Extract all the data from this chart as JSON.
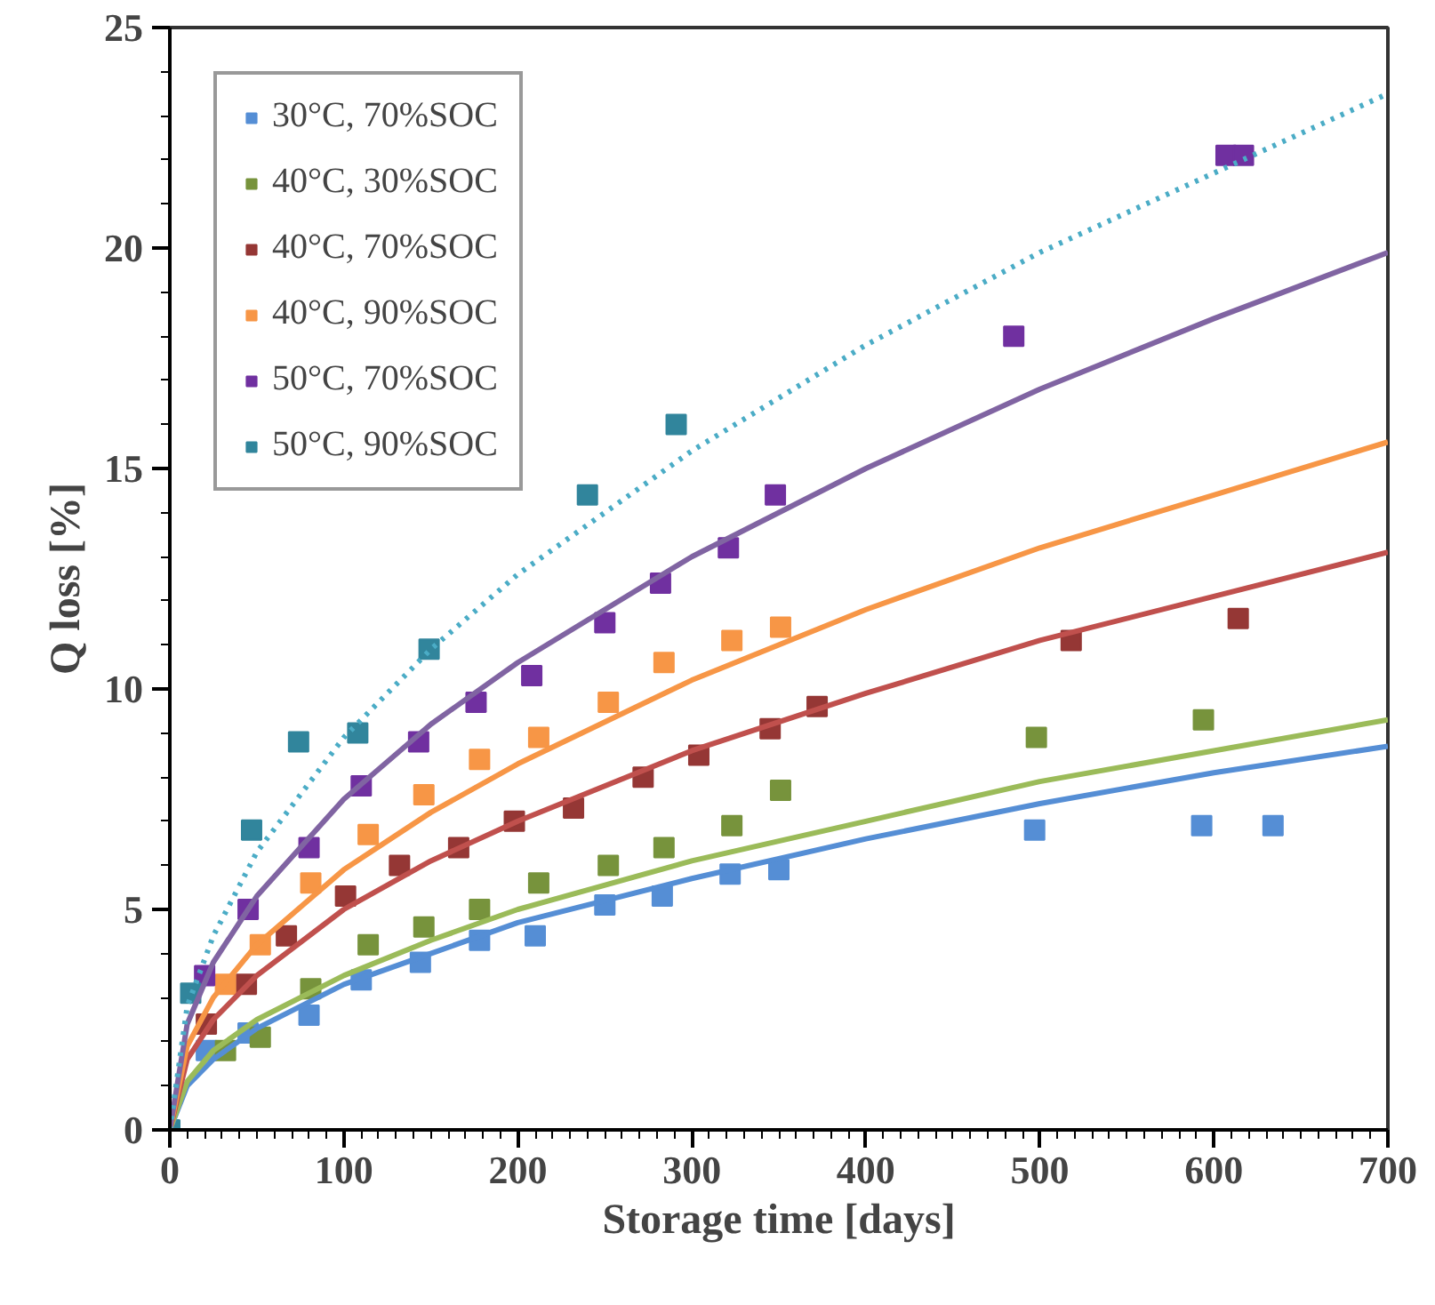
{
  "chart_data": {
    "type": "scatter",
    "xlabel": "Storage time [days]",
    "ylabel": "Q loss [%]",
    "xlim": [
      0,
      700
    ],
    "ylim": [
      0,
      25
    ],
    "xticks": [
      0,
      100,
      200,
      300,
      400,
      500,
      600,
      700
    ],
    "yticks": [
      0,
      5,
      10,
      15,
      20,
      25
    ],
    "grid": false,
    "legend": "top left",
    "marker": "square",
    "series": [
      {
        "name": "30°C, 70%SOC",
        "color": "#558ed5",
        "x": [
          21,
          45,
          80,
          110,
          144,
          178,
          210,
          250,
          283,
          322,
          350,
          497,
          593,
          634
        ],
        "values": [
          1.8,
          2.2,
          2.6,
          3.4,
          3.8,
          4.3,
          4.4,
          5.1,
          5.3,
          5.8,
          5.9,
          6.8,
          6.9,
          6.9
        ]
      },
      {
        "name": "40°C, 30%SOC",
        "color": "#77933c",
        "x": [
          32,
          52,
          81,
          114,
          146,
          178,
          212,
          252,
          284,
          323,
          351,
          498,
          594
        ],
        "values": [
          1.8,
          2.1,
          3.2,
          4.2,
          4.6,
          5.0,
          5.6,
          6.0,
          6.4,
          6.9,
          7.7,
          8.9,
          9.3
        ]
      },
      {
        "name": "40°C, 70%SOC",
        "color": "#953735",
        "x": [
          21,
          44,
          67,
          101,
          132,
          166,
          198,
          232,
          272,
          304,
          345,
          372,
          518,
          614
        ],
        "values": [
          2.4,
          3.3,
          4.4,
          5.3,
          6.0,
          6.4,
          7.0,
          7.3,
          8.0,
          8.5,
          9.1,
          9.6,
          11.1,
          11.6
        ]
      },
      {
        "name": "40°C, 90%SOC",
        "color": "#f79646",
        "x": [
          32,
          52,
          81,
          114,
          146,
          178,
          212,
          252,
          284,
          323,
          351
        ],
        "values": [
          3.3,
          4.2,
          5.6,
          6.7,
          7.6,
          8.4,
          8.9,
          9.7,
          10.6,
          11.1,
          11.4
        ]
      },
      {
        "name": "50°C, 70%SOC",
        "color": "#7030a0",
        "x": [
          20,
          45,
          80,
          110,
          143,
          176,
          208,
          250,
          282,
          321,
          348,
          485,
          607,
          617
        ],
        "values": [
          3.5,
          5.0,
          6.4,
          7.8,
          8.8,
          9.7,
          10.3,
          11.5,
          12.4,
          13.2,
          14.4,
          18.0,
          22.1,
          22.1
        ]
      },
      {
        "name": "50°C, 90%SOC",
        "color": "#31859c",
        "x": [
          0,
          12,
          47,
          74,
          108,
          149,
          240,
          291
        ],
        "values": [
          0,
          3.1,
          6.8,
          8.8,
          9.0,
          10.9,
          14.4,
          16.0
        ]
      },
      {
        "type": "line",
        "color": "#558ed5",
        "marker": "none",
        "line_style": "solid",
        "x": [
          0,
          10,
          25,
          50,
          100,
          150,
          200,
          300,
          400,
          500,
          600,
          700
        ],
        "values": [
          0,
          1.0,
          1.6,
          2.3,
          3.3,
          4.0,
          4.7,
          5.7,
          6.6,
          7.4,
          8.1,
          8.7
        ]
      },
      {
        "type": "line",
        "color": "#9bbb59",
        "marker": "none",
        "line_style": "solid",
        "x": [
          0,
          10,
          25,
          50,
          100,
          150,
          200,
          300,
          400,
          500,
          600,
          700
        ],
        "values": [
          0,
          1.1,
          1.8,
          2.5,
          3.5,
          4.3,
          5.0,
          6.1,
          7.0,
          7.9,
          8.6,
          9.3
        ]
      },
      {
        "type": "line",
        "color": "#c0504d",
        "marker": "none",
        "line_style": "solid",
        "x": [
          0,
          10,
          25,
          50,
          100,
          150,
          200,
          300,
          400,
          500,
          600,
          700
        ],
        "values": [
          0,
          1.6,
          2.5,
          3.5,
          5.0,
          6.1,
          7.0,
          8.6,
          9.9,
          11.1,
          12.1,
          13.1
        ]
      },
      {
        "type": "line",
        "color": "#f79646",
        "marker": "none",
        "line_style": "solid",
        "x": [
          0,
          10,
          25,
          50,
          100,
          150,
          200,
          300,
          400,
          500,
          600,
          700
        ],
        "values": [
          0,
          1.9,
          3.0,
          4.2,
          5.9,
          7.2,
          8.3,
          10.2,
          11.8,
          13.2,
          14.4,
          15.6
        ]
      },
      {
        "type": "line",
        "color": "#8064a2",
        "marker": "none",
        "line_style": "solid",
        "x": [
          0,
          10,
          25,
          50,
          100,
          150,
          200,
          300,
          400,
          500,
          600,
          700
        ],
        "values": [
          0,
          2.4,
          3.8,
          5.3,
          7.5,
          9.2,
          10.6,
          13.0,
          15.0,
          16.8,
          18.4,
          19.9
        ]
      },
      {
        "type": "line",
        "color": "#4bacc6",
        "marker": "none",
        "line_style": "dotted",
        "x": [
          0,
          10,
          25,
          50,
          100,
          150,
          200,
          300,
          400,
          500,
          600,
          700
        ],
        "values": [
          0,
          2.8,
          4.4,
          6.3,
          8.9,
          10.9,
          12.6,
          15.4,
          17.8,
          19.9,
          21.7,
          23.5
        ]
      }
    ]
  }
}
